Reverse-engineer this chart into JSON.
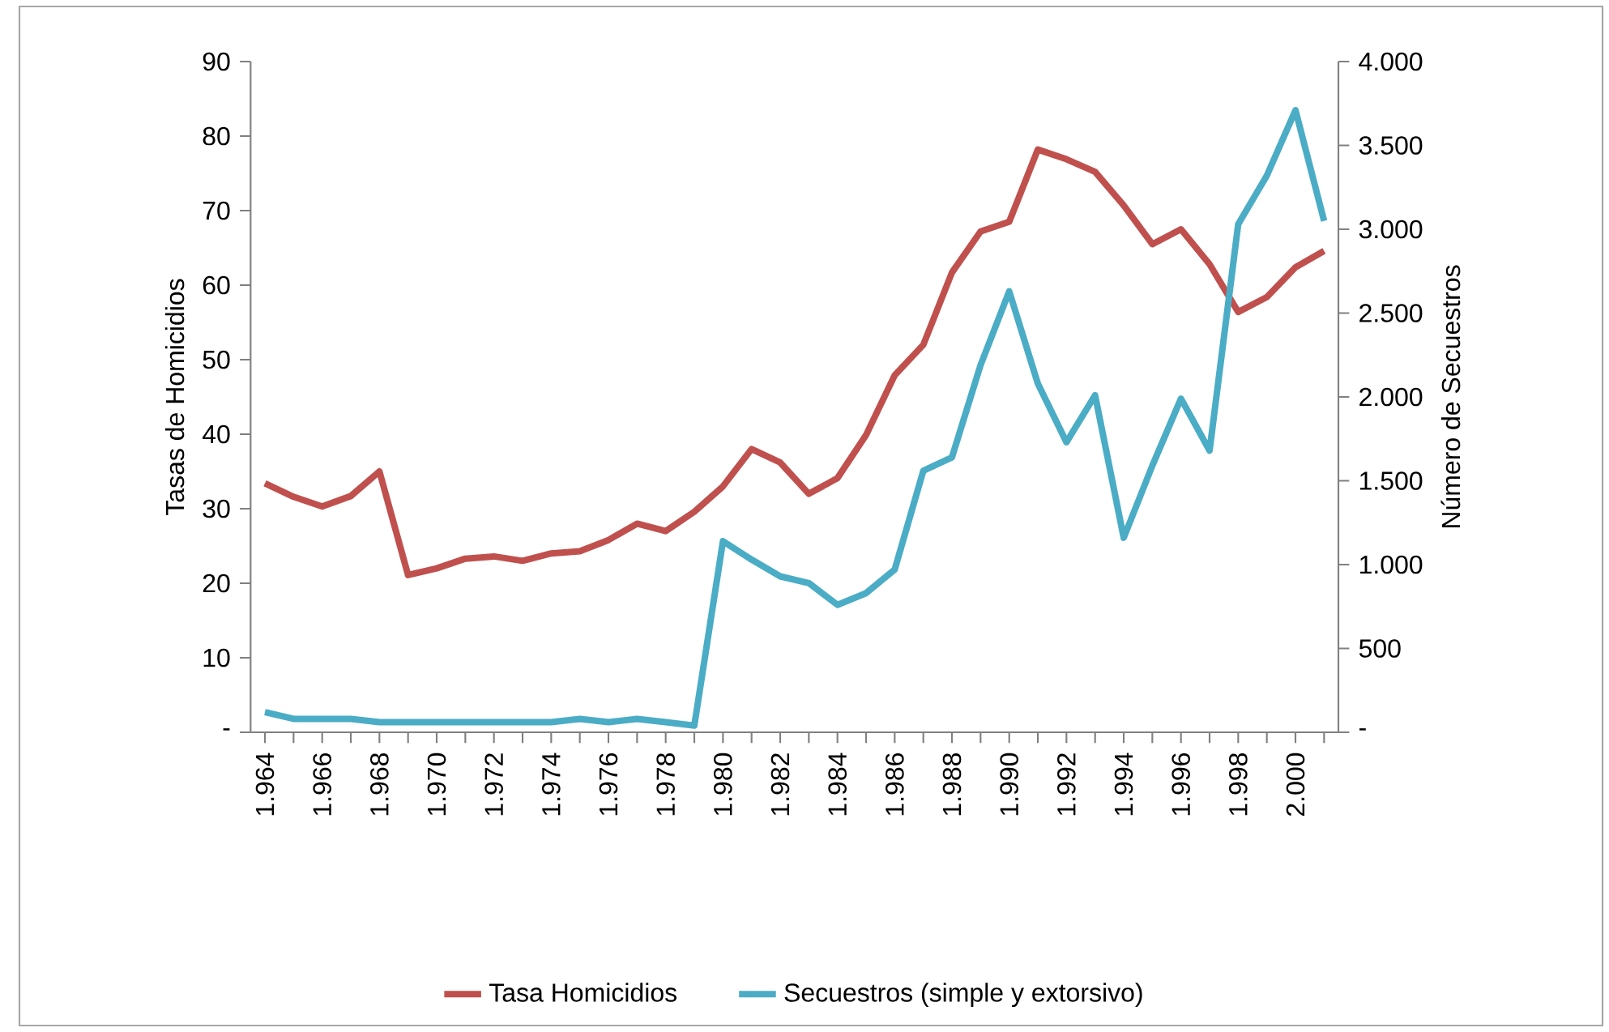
{
  "chart_data": {
    "type": "line",
    "ylabel": "Tasas de Homicidios",
    "y2label": "Número de Secuestros",
    "legend": "bottom",
    "categories": [
      "1.964",
      null,
      "1.966",
      null,
      "1.968",
      null,
      "1.970",
      null,
      "1.972",
      null,
      "1.974",
      null,
      "1.976",
      null,
      "1.978",
      null,
      "1.980",
      null,
      "1.982",
      null,
      "1.984",
      null,
      "1.986",
      null,
      "1.988",
      null,
      "1.990",
      null,
      "1.992",
      null,
      "1.994",
      null,
      "1.996",
      null,
      "1.998",
      null,
      "2.000",
      null
    ],
    "ylim": [
      0,
      90
    ],
    "yticks": [
      {
        "value": 0,
        "label": "-"
      },
      10,
      20,
      30,
      40,
      50,
      60,
      70,
      80,
      90
    ],
    "y2lim": [
      0,
      4000
    ],
    "y2ticks": [
      {
        "value": 0,
        "label": "-"
      },
      {
        "value": 500,
        "label": "500"
      },
      {
        "value": 1000,
        "label": "1.000"
      },
      {
        "value": 1500,
        "label": "1.500"
      },
      {
        "value": 2000,
        "label": "2.000"
      },
      {
        "value": 2500,
        "label": "2.500"
      },
      {
        "value": 3000,
        "label": "3.000"
      },
      {
        "value": 3500,
        "label": "3.500"
      },
      {
        "value": 4000,
        "label": "4.000"
      }
    ],
    "series": [
      {
        "name": "Tasa Homicidios",
        "color": "#c0504d",
        "values": [
          33.4,
          31.6,
          30.3,
          31.7,
          35.0,
          21.1,
          22.0,
          23.3,
          23.6,
          23.0,
          24.0,
          24.3,
          25.8,
          28.0,
          27.0,
          29.6,
          33.0,
          38.0,
          36.2,
          32.0,
          34.1,
          39.9,
          47.9,
          52.0,
          61.7,
          67.2,
          68.5,
          78.2,
          76.9,
          75.2,
          70.7,
          65.5,
          67.5,
          62.8,
          56.4,
          58.4,
          62.4,
          64.6
        ]
      },
      {
        "name": "Secuestros (simple y extorsivo)",
        "color": "#4bacc6",
        "axis": "y2",
        "values": [
          120,
          80,
          80,
          80,
          60,
          60,
          60,
          60,
          60,
          60,
          60,
          80,
          60,
          80,
          60,
          40,
          1140,
          1030,
          930,
          890,
          760,
          830,
          970,
          1560,
          1640,
          2190,
          2630,
          2080,
          1730,
          2010,
          1160,
          1590,
          1990,
          1680,
          3030,
          3320,
          3710,
          3050
        ]
      }
    ]
  }
}
